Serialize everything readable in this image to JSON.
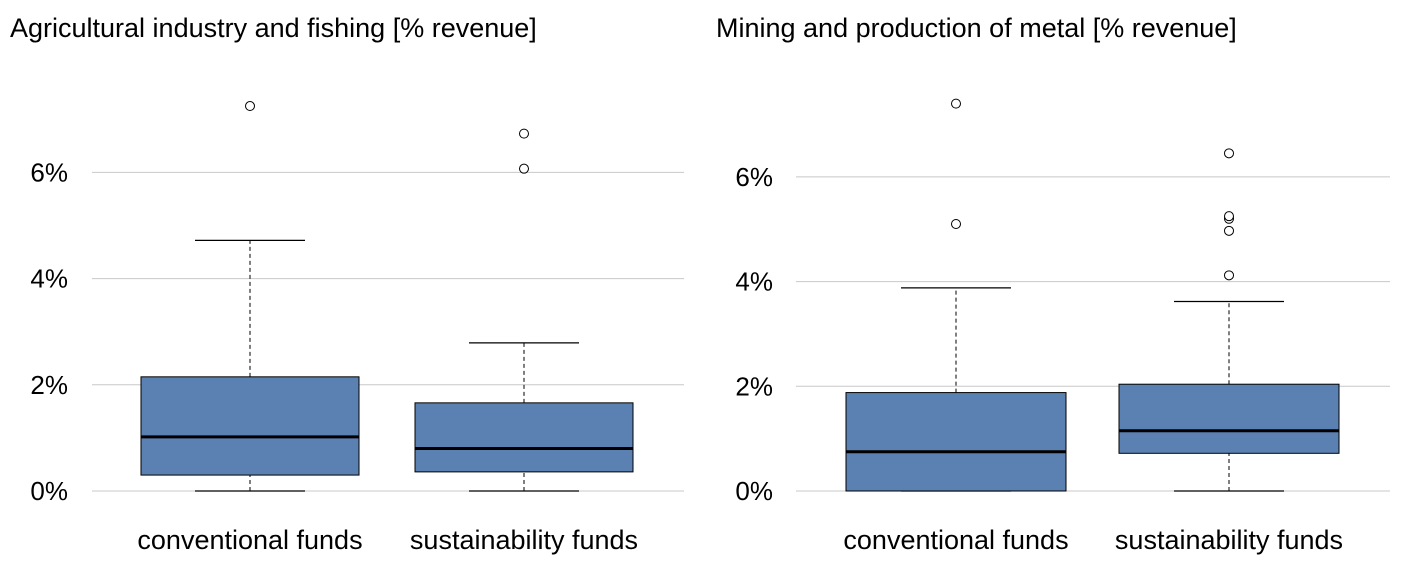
{
  "colors": {
    "box_fill": "#5b80b2",
    "grid": "#c8c8c8",
    "line": "#000000"
  },
  "chart_data": [
    {
      "type": "boxplot",
      "title": "Agricultural industry and fishing [% revenue]",
      "xlabel": "",
      "ylabel": "",
      "ylim": [
        0,
        7.5
      ],
      "yticks": [
        0,
        2,
        4,
        6
      ],
      "ytick_labels": [
        "0%",
        "2%",
        "4%",
        "6%"
      ],
      "grid": true,
      "categories": [
        "conventional funds",
        "sustainability funds"
      ],
      "boxes": [
        {
          "category": "conventional funds",
          "whisker_low": 0.0,
          "q1": 0.3,
          "median": 1.02,
          "q3": 2.15,
          "whisker_high": 4.72,
          "outliers": [
            7.25
          ]
        },
        {
          "category": "sustainability funds",
          "whisker_low": 0.0,
          "q1": 0.36,
          "median": 0.8,
          "q3": 1.66,
          "whisker_high": 2.79,
          "outliers": [
            6.07,
            6.73
          ]
        }
      ]
    },
    {
      "type": "boxplot",
      "title": "Mining and production of metal [% revenue]",
      "xlabel": "",
      "ylabel": "",
      "ylim": [
        0,
        7.6
      ],
      "yticks": [
        0,
        2,
        4,
        6
      ],
      "ytick_labels": [
        "0%",
        "2%",
        "4%",
        "6%"
      ],
      "grid": true,
      "categories": [
        "conventional funds",
        "sustainability funds"
      ],
      "boxes": [
        {
          "category": "conventional funds",
          "whisker_low": 0.0,
          "q1": 0.0,
          "median": 0.75,
          "q3": 1.88,
          "whisker_high": 3.88,
          "outliers": [
            5.1,
            7.4
          ]
        },
        {
          "category": "sustainability funds",
          "whisker_low": 0.0,
          "q1": 0.72,
          "median": 1.15,
          "q3": 2.04,
          "whisker_high": 3.62,
          "outliers": [
            4.12,
            4.97,
            5.2,
            5.25,
            6.45
          ]
        }
      ]
    }
  ]
}
